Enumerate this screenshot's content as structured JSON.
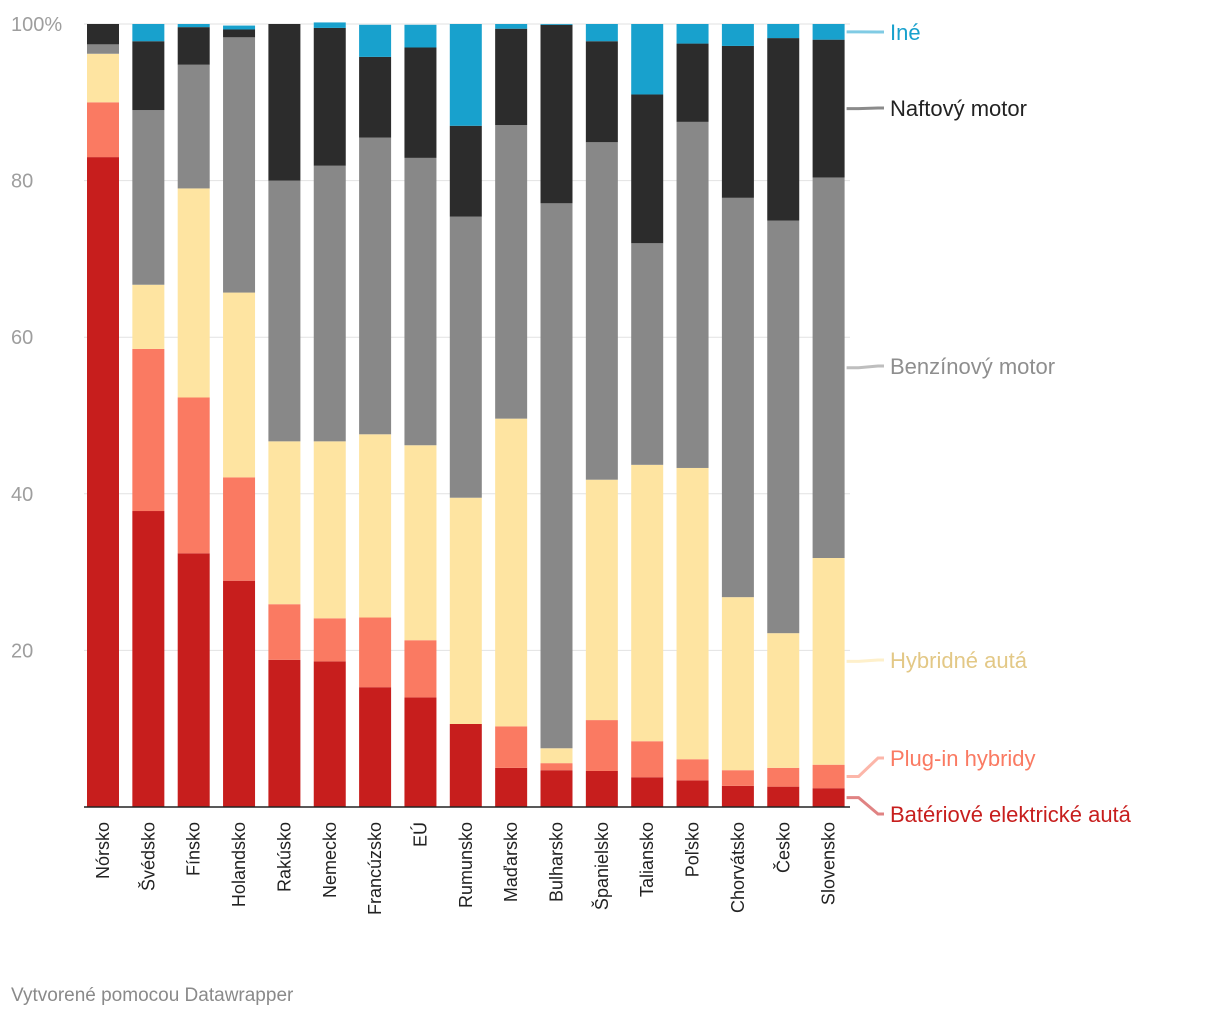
{
  "chart_data": {
    "type": "bar",
    "stacked": true,
    "ylim": [
      0,
      100
    ],
    "yticks": [
      {
        "value": 100,
        "label": "100%"
      },
      {
        "value": 80,
        "label": "80"
      },
      {
        "value": 60,
        "label": "60"
      },
      {
        "value": 40,
        "label": "40"
      },
      {
        "value": 20,
        "label": "20"
      }
    ],
    "categories": [
      "Nórsko",
      "Švédsko",
      "Fínsko",
      "Holandsko",
      "Rakúsko",
      "Nemecko",
      "Francúzsko",
      "EÚ",
      "Rumunsko",
      "Maďarsko",
      "Bulharsko",
      "Španielsko",
      "Taliansko",
      "Poľsko",
      "Chorvátsko",
      "Česko",
      "Slovensko"
    ],
    "series": [
      {
        "name": "Batériové elektrické autá",
        "color": "#c71e1d",
        "label_color": "#c71e1d",
        "values": [
          83.0,
          37.8,
          32.4,
          28.9,
          18.8,
          18.6,
          15.3,
          14.0,
          10.6,
          5.0,
          4.7,
          4.6,
          3.8,
          3.4,
          2.7,
          2.6,
          2.4
        ]
      },
      {
        "name": "Plug-in hybridy",
        "color": "#fa7a62",
        "label_color": "#fa7a62",
        "values": [
          7.0,
          20.7,
          19.9,
          13.2,
          7.1,
          5.5,
          8.9,
          7.3,
          0.0,
          5.3,
          0.9,
          6.5,
          4.6,
          2.7,
          2.0,
          2.4,
          3.0
        ]
      },
      {
        "name": "Hybridné autá",
        "color": "#fee4a1",
        "label_color": "#e3c886",
        "values": [
          6.2,
          8.2,
          26.7,
          23.6,
          20.8,
          22.6,
          23.4,
          24.9,
          28.9,
          39.3,
          1.9,
          30.7,
          35.3,
          37.2,
          22.1,
          17.2,
          26.4
        ]
      },
      {
        "name": "Benzínový motor",
        "color": "#888888",
        "label_color": "#8e8e8e",
        "values": [
          1.2,
          22.3,
          15.8,
          32.6,
          33.3,
          35.2,
          37.9,
          36.7,
          35.9,
          37.5,
          69.6,
          43.1,
          28.3,
          44.2,
          51.0,
          52.7,
          48.6
        ]
      },
      {
        "name": "Naftový motor",
        "color": "#2c2c2c",
        "label_color": "#222222",
        "values": [
          2.6,
          8.8,
          4.8,
          1.0,
          20.0,
          17.6,
          10.3,
          14.1,
          11.6,
          12.3,
          22.8,
          12.9,
          19.0,
          10.0,
          19.4,
          23.3,
          17.6
        ]
      },
      {
        "name": "Iné",
        "color": "#18a1cd",
        "label_color": "#18a1cd",
        "values": [
          0.0,
          2.2,
          0.4,
          0.5,
          0.0,
          0.7,
          4.1,
          2.9,
          13.0,
          0.6,
          0.1,
          2.2,
          9.0,
          2.5,
          2.8,
          1.8,
          2.0
        ]
      }
    ],
    "legend_placement": "right, labels aligned to last bar segments"
  },
  "footer": {
    "note": "Vytvorené pomocou Datawrapper"
  }
}
